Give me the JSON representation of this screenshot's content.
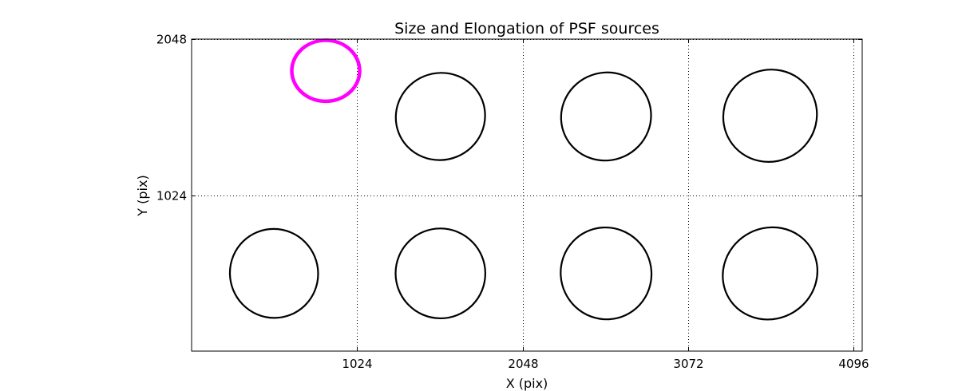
{
  "chart_data": {
    "type": "scatter",
    "title": "Size and Elongation of PSF sources",
    "xlabel": "X (pix)",
    "ylabel": "Y (pix)",
    "xlim": [
      0,
      4150
    ],
    "ylim": [
      0,
      2048
    ],
    "x_ticks": [
      {
        "value": 1024,
        "label": "1024"
      },
      {
        "value": 2048,
        "label": "2048"
      },
      {
        "value": 3072,
        "label": "3072"
      },
      {
        "value": 4096,
        "label": "4096"
      }
    ],
    "y_ticks": [
      {
        "value": 1024,
        "label": "1024"
      },
      {
        "value": 2048,
        "label": "2048"
      }
    ],
    "grid": true,
    "highlight_color": "#ff00ff",
    "source_color": "#000000",
    "highlight": {
      "x": 830,
      "y": 1840,
      "width": 420,
      "height": 400,
      "angle": 0
    },
    "ellipses": [
      {
        "x": 1540,
        "y": 1540,
        "width": 555,
        "height": 570,
        "angle": -22
      },
      {
        "x": 2565,
        "y": 1540,
        "width": 560,
        "height": 575,
        "angle": -25
      },
      {
        "x": 3580,
        "y": 1545,
        "width": 585,
        "height": 600,
        "angle": -32
      },
      {
        "x": 510,
        "y": 510,
        "width": 545,
        "height": 585,
        "angle": -22
      },
      {
        "x": 1540,
        "y": 510,
        "width": 555,
        "height": 590,
        "angle": -22
      },
      {
        "x": 2565,
        "y": 510,
        "width": 560,
        "height": 605,
        "angle": -25
      },
      {
        "x": 3580,
        "y": 510,
        "width": 595,
        "height": 595,
        "angle": -32
      }
    ]
  }
}
